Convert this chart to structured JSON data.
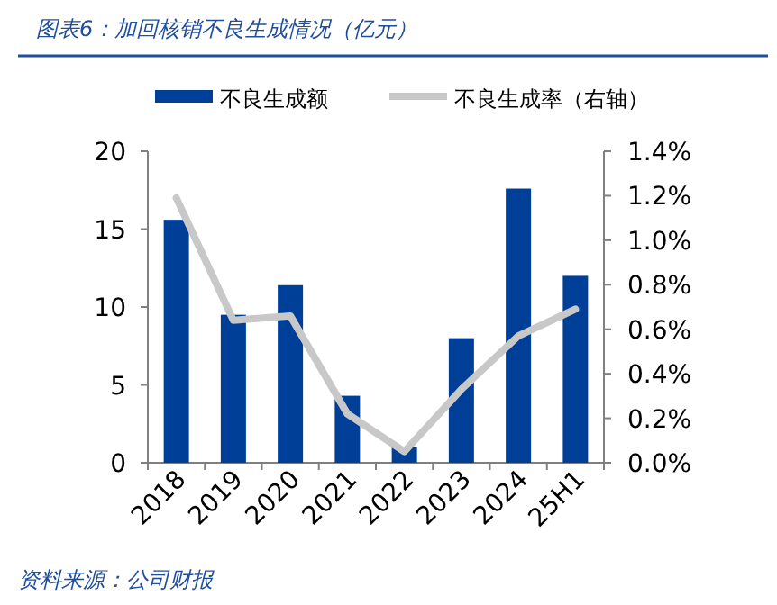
{
  "chart_data": {
    "type": "bar",
    "title": "图表6：加回核销不良生成情况（亿元）",
    "categories": [
      "2018",
      "2019",
      "2020",
      "2021",
      "2022",
      "2023",
      "2024",
      "25H1"
    ],
    "series": [
      {
        "name": "不良生成额",
        "color": "#003f98",
        "values": [
          15.6,
          9.5,
          11.4,
          4.3,
          1.0,
          8.0,
          17.6,
          12.0
        ]
      },
      {
        "name": "不良生成率（右轴）",
        "type": "line",
        "axis": "y2",
        "color": "#c8c8c8",
        "values": [
          1.19,
          0.64,
          0.66,
          0.22,
          0.05,
          0.33,
          0.57,
          0.69
        ]
      }
    ],
    "ylim": [
      0,
      20
    ],
    "yticks": [
      0,
      5,
      10,
      15,
      20
    ],
    "y2lim": [
      0,
      1.4
    ],
    "y2ticks": [
      {
        "value": 0,
        "label": "0.0%"
      },
      {
        "value": 0.2,
        "label": "0.2%"
      },
      {
        "value": 0.4,
        "label": "0.4%"
      },
      {
        "value": 0.6,
        "label": "0.6%"
      },
      {
        "value": 0.8,
        "label": "0.8%"
      },
      {
        "value": 1.0,
        "label": "1.0%"
      },
      {
        "value": 1.2,
        "label": "1.2%"
      },
      {
        "value": 1.4,
        "label": "1.4%"
      }
    ],
    "grid": false,
    "legend": "top",
    "marker": "none",
    "annotations": [
      "资料来源：公司财报"
    ]
  }
}
